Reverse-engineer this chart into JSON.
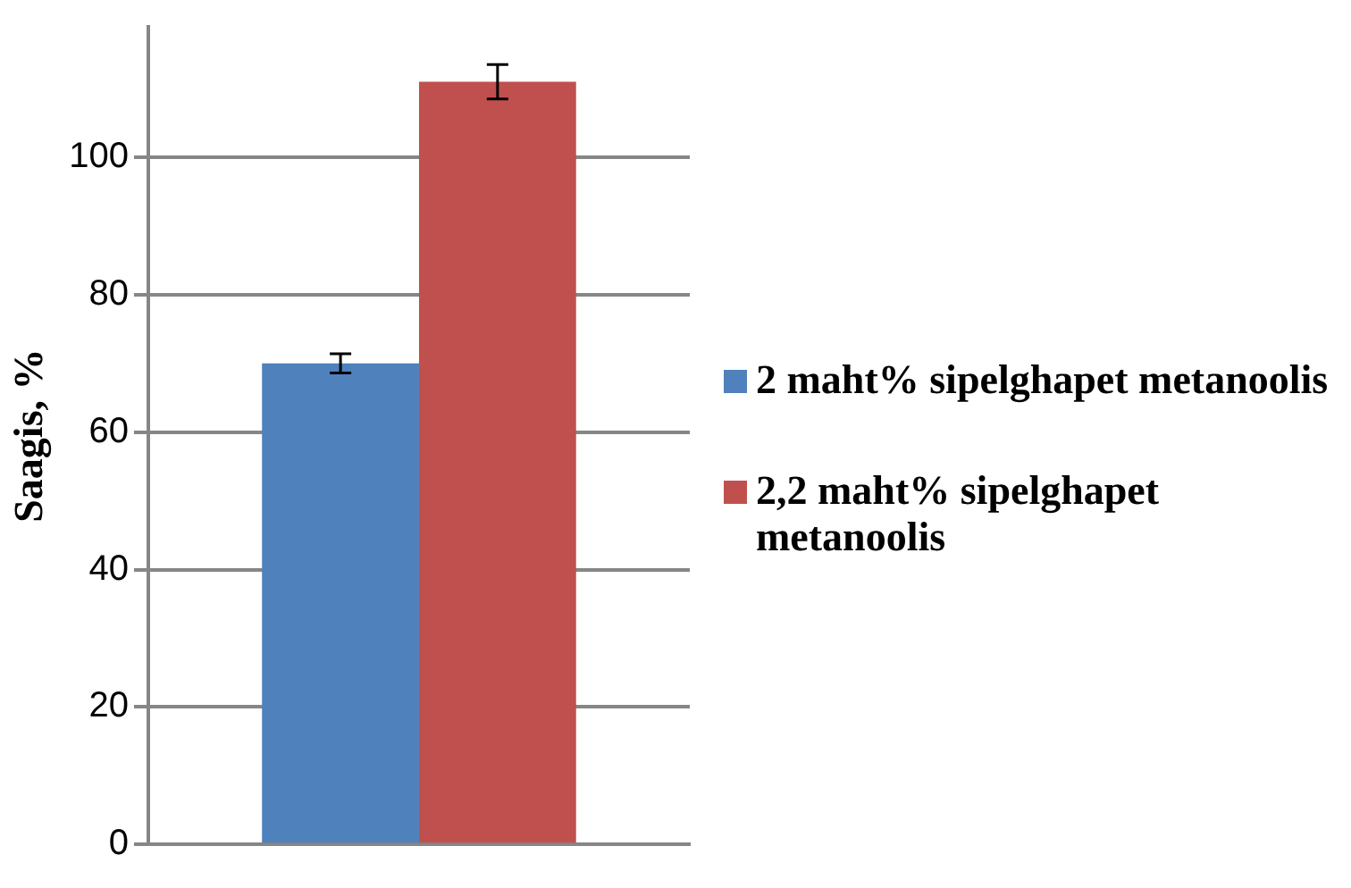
{
  "chart_data": {
    "type": "bar",
    "ylabel": "Saagis, %",
    "categories": [
      null
    ],
    "series": [
      {
        "name": "2 maht% sipelghapet metanoolis",
        "color": "#4f81bd",
        "values": [
          70
        ],
        "errors": [
          1.4
        ]
      },
      {
        "name": "2,2 maht% sipelghapet metanoolis",
        "color": "#c0504d",
        "values": [
          111
        ],
        "errors": [
          2.5
        ]
      }
    ],
    "ylim": [
      0,
      119
    ],
    "yticks": [
      0,
      20,
      40,
      60,
      80,
      100
    ],
    "grid": "y",
    "legend": "right"
  }
}
